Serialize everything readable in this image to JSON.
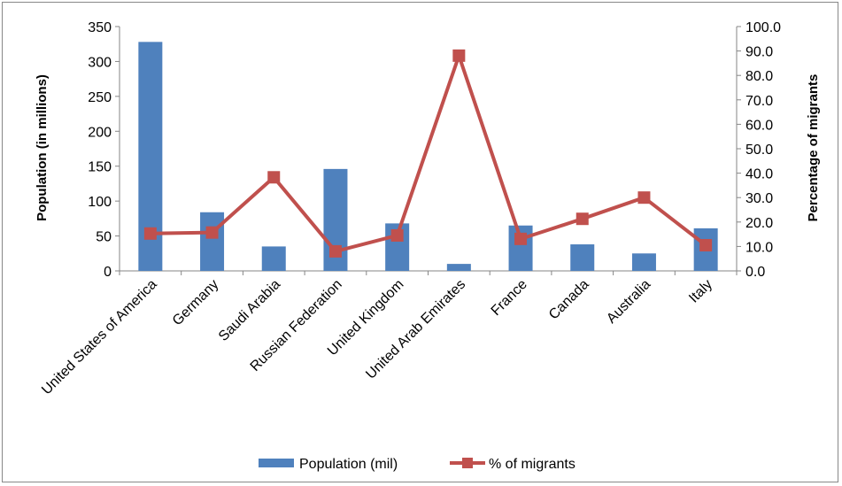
{
  "chart_data": {
    "type": "bar+line",
    "categories": [
      "United States of America",
      "Germany",
      "Saudi Arabia",
      "Russian Federation",
      "United Kingdom",
      "United Arab Emirates",
      "France",
      "Canada",
      "Australia",
      "Italy"
    ],
    "series": [
      {
        "name": "Population (mil)",
        "type": "bar",
        "axis": "left",
        "color": "#4f81bd",
        "values": [
          328,
          84,
          35,
          146,
          68,
          10,
          65,
          38,
          25,
          61
        ]
      },
      {
        "name": "% of migrants",
        "type": "line",
        "axis": "right",
        "color": "#c0504d",
        "values": [
          15.3,
          15.7,
          38.3,
          8.0,
          14.5,
          88.1,
          13.1,
          21.3,
          30.0,
          10.5
        ]
      }
    ],
    "ylabel_left": "Population (in millions)",
    "ylabel_right": "Percentage of migrants",
    "ylim_left": [
      0,
      350
    ],
    "ylim_right": [
      0,
      100
    ],
    "yticks_left": [
      "0",
      "50",
      "100",
      "150",
      "200",
      "250",
      "300",
      "350"
    ],
    "yticks_right": [
      "0.0",
      "10.0",
      "20.0",
      "30.0",
      "40.0",
      "50.0",
      "60.0",
      "70.0",
      "80.0",
      "90.0",
      "100.0"
    ],
    "grid": false,
    "legend_position": "bottom"
  }
}
